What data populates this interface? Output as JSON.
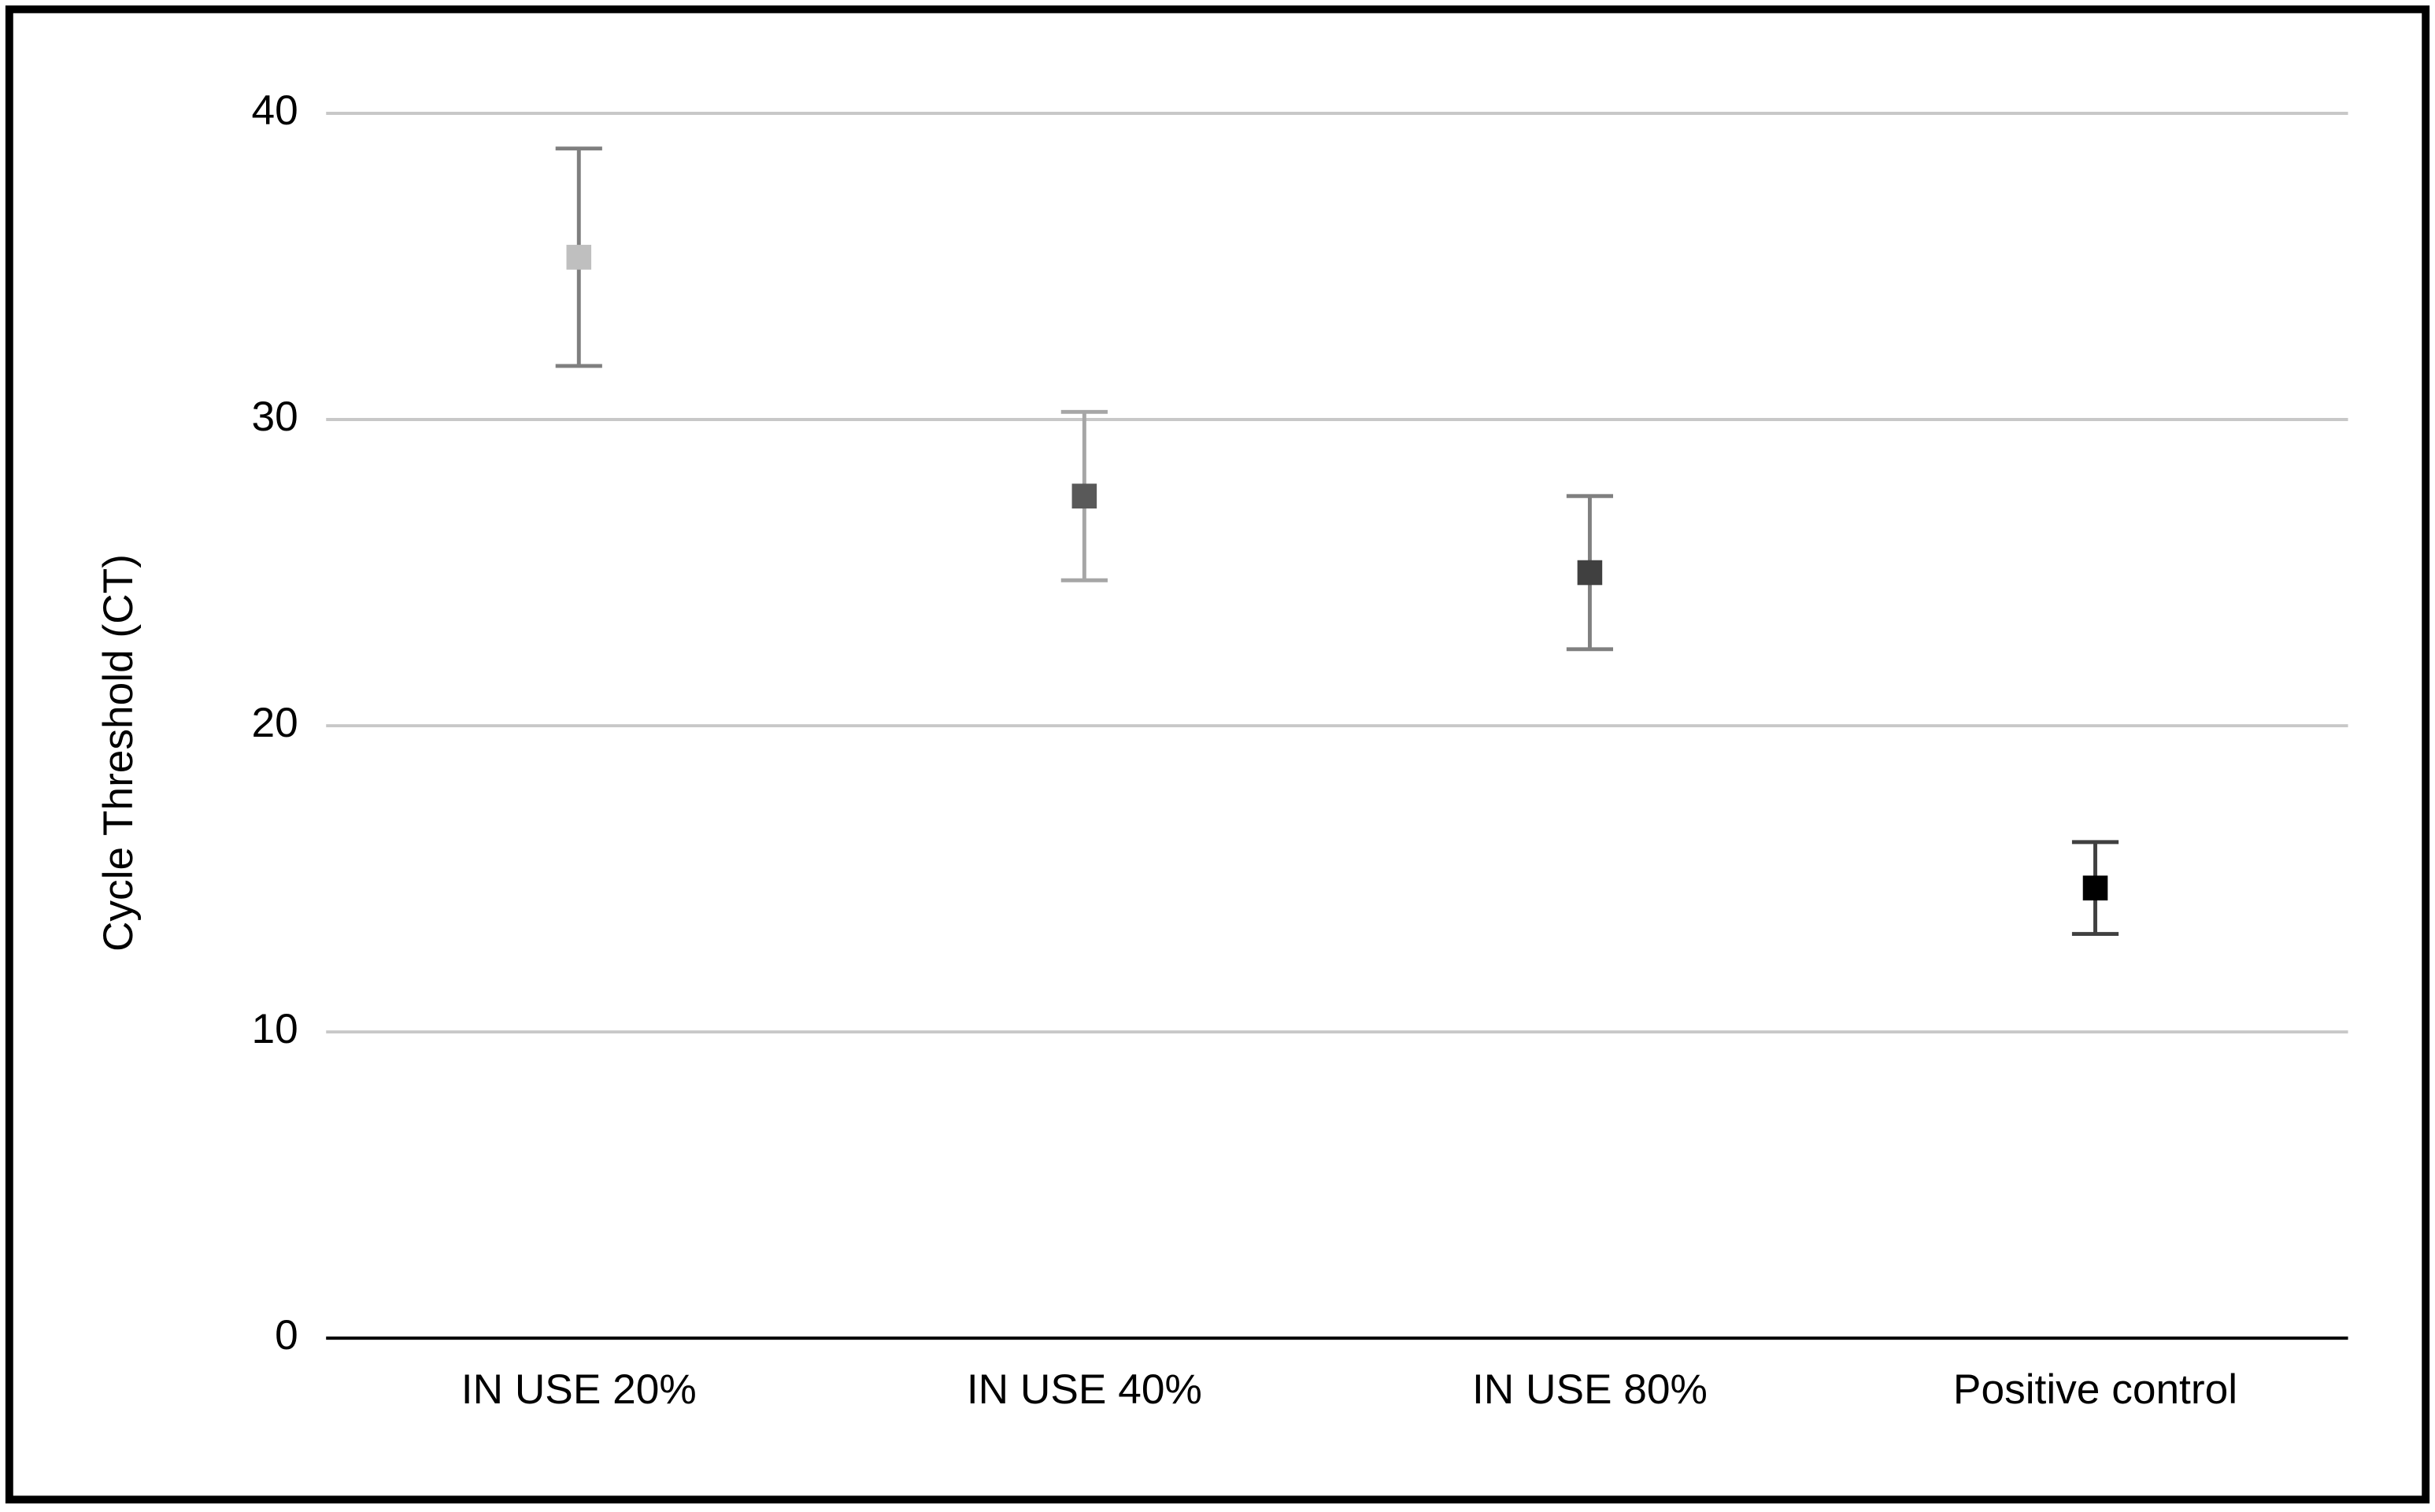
{
  "chart_data": {
    "type": "errorbar",
    "y_label": "Cycle Threshold (CT)",
    "categories": [
      "IN USE 20%",
      "IN USE 40%",
      "IN USE 80%",
      "Positive control"
    ],
    "values": [
      35.3,
      27.5,
      25.0,
      14.7
    ],
    "errors": [
      3.55,
      2.75,
      2.5,
      1.5
    ],
    "colors": [
      "#bfbfbf",
      "#595959",
      "#404040",
      "#000000"
    ],
    "error_colors": [
      "#7f7f7f",
      "#a6a6a6",
      "#808080",
      "#404040"
    ],
    "ylim": [
      0,
      40
    ],
    "yticks": [
      0,
      10,
      20,
      30,
      40
    ],
    "grid": true
  }
}
